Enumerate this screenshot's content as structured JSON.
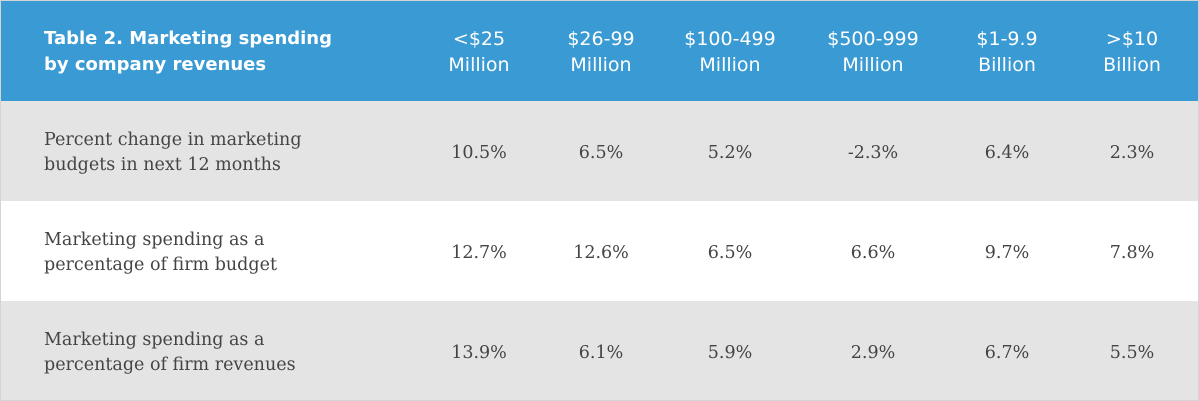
{
  "header": {
    "title": [
      "Table 2. Marketing spending",
      "by company revenues"
    ],
    "columns": [
      [
        "<$25",
        "Million"
      ],
      [
        "$26-99",
        "Million"
      ],
      [
        "$100-499",
        "Million"
      ],
      [
        "$500-999",
        "Million"
      ],
      [
        "$1-9.9",
        "Billion"
      ],
      [
        ">$10",
        "Billion"
      ]
    ]
  },
  "table": {
    "rows": [
      {
        "label": [
          "Percent change in marketing",
          "budgets in next 12 months"
        ],
        "values": [
          "10.5%",
          "6.5%",
          "5.2%",
          "-2.3%",
          "6.4%",
          "2.3%"
        ]
      },
      {
        "label": [
          "Marketing spending as a",
          "percentage of firm budget"
        ],
        "values": [
          "12.7%",
          "12.6%",
          "6.5%",
          "6.6%",
          "9.7%",
          "7.8%"
        ]
      },
      {
        "label": [
          "Marketing spending as a",
          "percentage of firm revenues"
        ],
        "values": [
          "13.9%",
          "6.1%",
          "5.9%",
          "2.9%",
          "6.7%",
          "5.5%"
        ]
      }
    ]
  }
}
